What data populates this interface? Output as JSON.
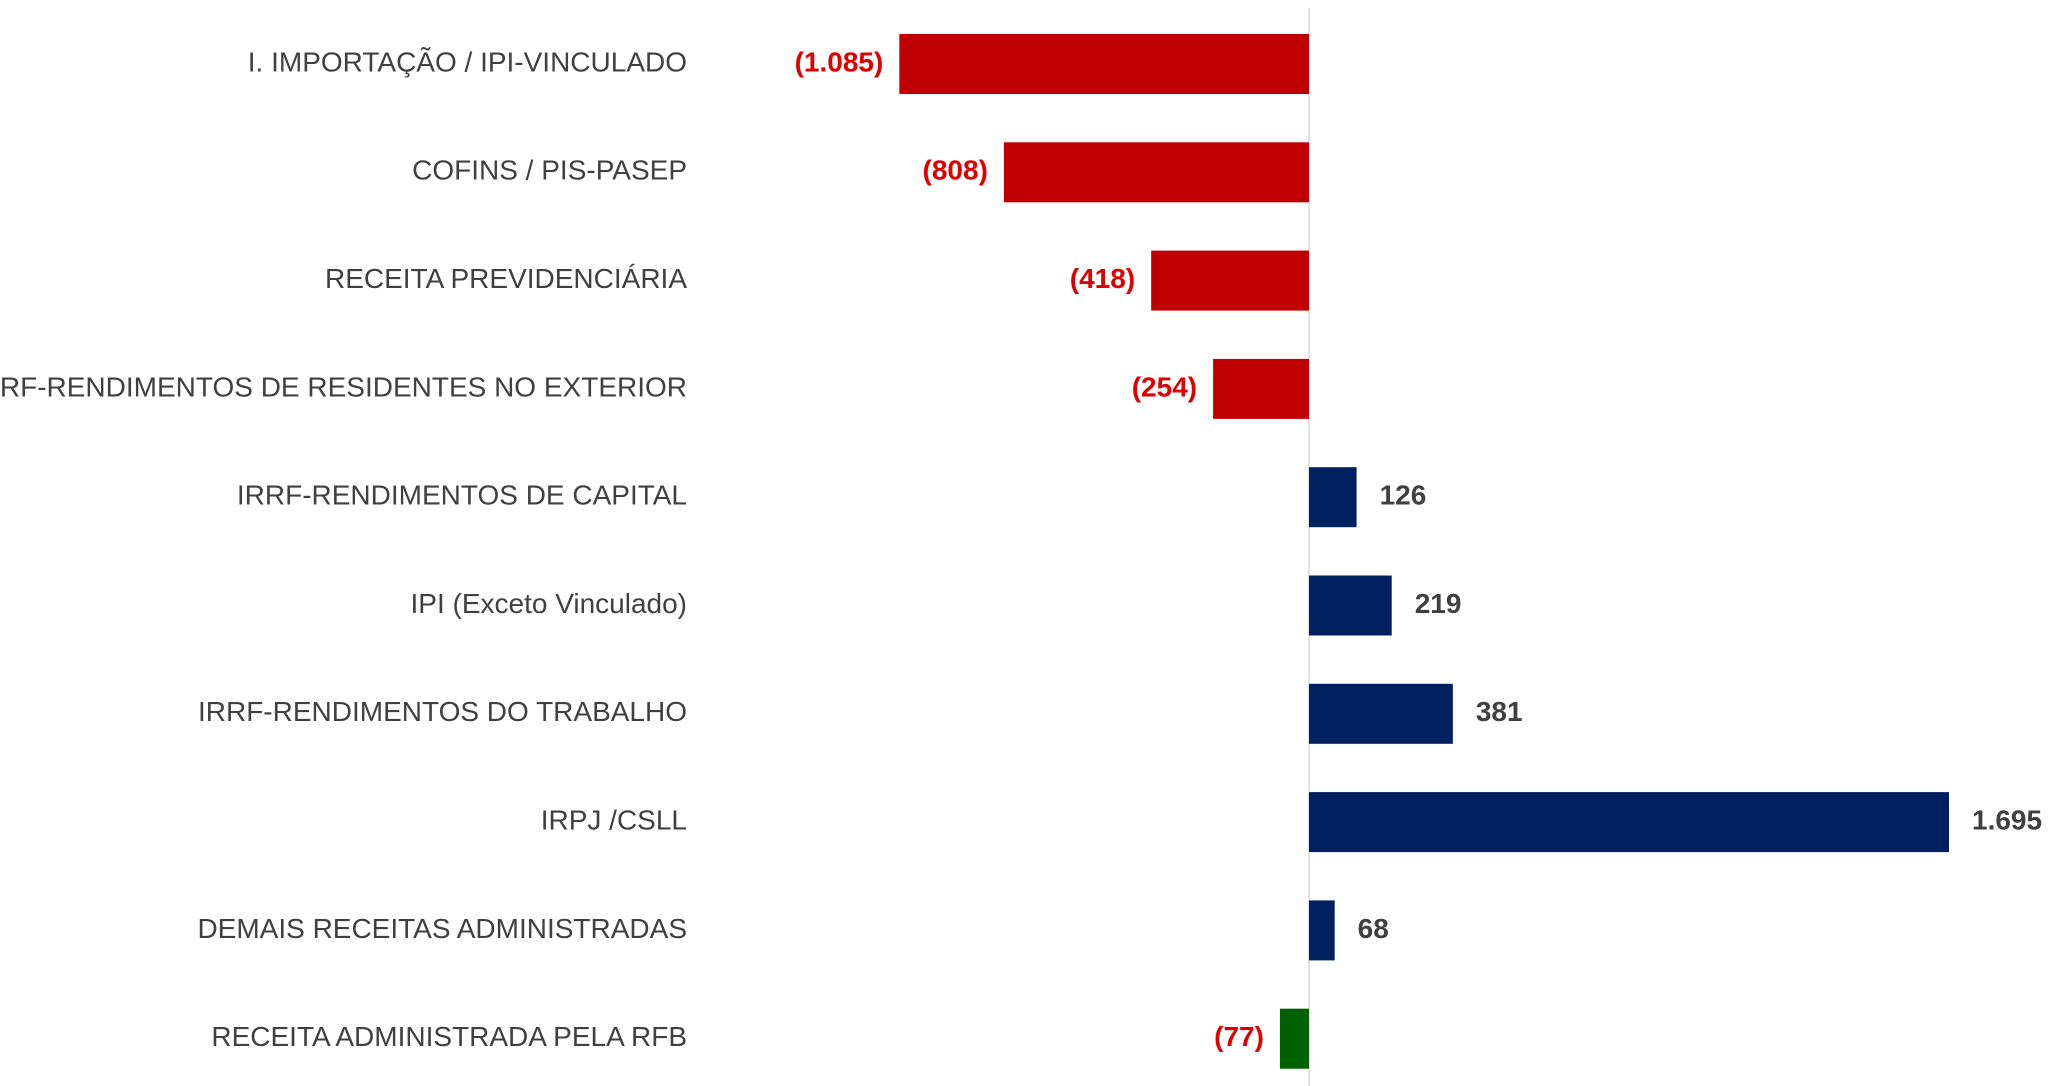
{
  "chart_data": {
    "type": "hbar",
    "categories": [
      "I. IMPORTAÇÃO / IPI-VINCULADO",
      "COFINS / PIS-PASEP",
      "RECEITA PREVIDENCIÁRIA",
      "IRRF-RENDIMENTOS DE RESIDENTES NO EXTERIOR",
      "IRRF-RENDIMENTOS DE CAPITAL",
      "IPI (Exceto Vinculado)",
      "IRRF-RENDIMENTOS DO TRABALHO",
      "IRPJ /CSLL",
      "DEMAIS RECEITAS ADMINISTRADAS",
      "RECEITA ADMINISTRADA PELA RFB"
    ],
    "values": [
      -1085,
      -808,
      -418,
      -254,
      126,
      219,
      381,
      1695,
      68,
      -77
    ],
    "value_labels": [
      "(1.085)",
      "(808)",
      "(418)",
      "(254)",
      "126",
      "219",
      "381",
      "1.695",
      "68",
      "(77)"
    ],
    "colors": [
      "#c00000",
      "#c00000",
      "#c00000",
      "#c00000",
      "#002060",
      "#002060",
      "#002060",
      "#002060",
      "#002060",
      "#006100"
    ],
    "label_colors": {
      "negative": "#e00000",
      "positive": "#404040"
    }
  }
}
